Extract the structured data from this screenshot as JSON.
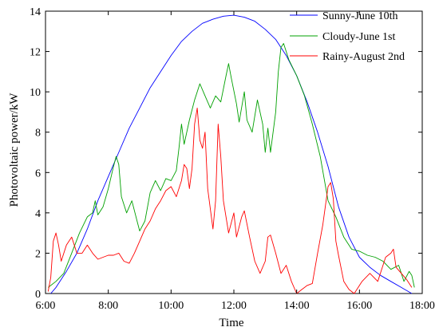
{
  "chart_data": {
    "type": "line",
    "xlabel": "Time",
    "ylabel": "Photovoltaic power/kW",
    "xlim": [
      "6:00",
      "18:00"
    ],
    "ylim": [
      0,
      14
    ],
    "x_ticks": [
      "6:00",
      "8:00",
      "10:00",
      "12:00",
      "14:00",
      "16:00",
      "18:00"
    ],
    "y_ticks": [
      "0",
      "2",
      "4",
      "6",
      "8",
      "10",
      "12",
      "14"
    ],
    "grid": false,
    "legend_position": "top-right",
    "series": [
      {
        "name": "Sunny-June 10th",
        "color": "#0000ff",
        "points": [
          [
            "6:10",
            0.0
          ],
          [
            "6:20",
            0.3
          ],
          [
            "6:40",
            1.1
          ],
          [
            "7:00",
            2.0
          ],
          [
            "7:20",
            3.2
          ],
          [
            "7:40",
            4.6
          ],
          [
            "8:00",
            5.8
          ],
          [
            "8:20",
            7.0
          ],
          [
            "8:40",
            8.2
          ],
          [
            "9:00",
            9.2
          ],
          [
            "9:20",
            10.2
          ],
          [
            "9:40",
            11.0
          ],
          [
            "10:00",
            11.8
          ],
          [
            "10:20",
            12.5
          ],
          [
            "10:40",
            13.0
          ],
          [
            "11:00",
            13.4
          ],
          [
            "11:20",
            13.6
          ],
          [
            "11:40",
            13.75
          ],
          [
            "12:00",
            13.8
          ],
          [
            "12:20",
            13.7
          ],
          [
            "12:40",
            13.5
          ],
          [
            "13:00",
            13.1
          ],
          [
            "13:20",
            12.6
          ],
          [
            "13:40",
            11.8
          ],
          [
            "14:00",
            10.8
          ],
          [
            "14:20",
            9.5
          ],
          [
            "14:40",
            8.0
          ],
          [
            "15:00",
            6.3
          ],
          [
            "15:20",
            4.3
          ],
          [
            "15:40",
            2.8
          ],
          [
            "16:00",
            1.8
          ],
          [
            "16:20",
            1.3
          ],
          [
            "16:40",
            0.9
          ],
          [
            "17:00",
            0.6
          ],
          [
            "17:20",
            0.3
          ],
          [
            "17:40",
            0.0
          ]
        ]
      },
      {
        "name": "Cloudy-June 1st",
        "color": "#00a000",
        "points": [
          [
            "6:05",
            0.3
          ],
          [
            "6:20",
            0.6
          ],
          [
            "6:35",
            1.0
          ],
          [
            "6:50",
            2.0
          ],
          [
            "7:05",
            3.0
          ],
          [
            "7:20",
            3.8
          ],
          [
            "7:30",
            4.0
          ],
          [
            "7:35",
            4.6
          ],
          [
            "7:40",
            3.9
          ],
          [
            "7:50",
            4.3
          ],
          [
            "8:00",
            5.2
          ],
          [
            "8:10",
            6.3
          ],
          [
            "8:15",
            6.8
          ],
          [
            "8:20",
            6.4
          ],
          [
            "8:25",
            4.8
          ],
          [
            "8:35",
            4.0
          ],
          [
            "8:45",
            4.6
          ],
          [
            "8:55",
            3.6
          ],
          [
            "9:00",
            3.1
          ],
          [
            "9:10",
            3.6
          ],
          [
            "9:20",
            5.0
          ],
          [
            "9:30",
            5.6
          ],
          [
            "9:40",
            5.1
          ],
          [
            "9:50",
            5.7
          ],
          [
            "10:00",
            5.6
          ],
          [
            "10:10",
            6.1
          ],
          [
            "10:15",
            7.2
          ],
          [
            "10:20",
            8.4
          ],
          [
            "10:25",
            7.4
          ],
          [
            "10:35",
            8.6
          ],
          [
            "10:45",
            9.6
          ],
          [
            "10:55",
            10.4
          ],
          [
            "11:05",
            9.8
          ],
          [
            "11:15",
            9.2
          ],
          [
            "11:25",
            9.8
          ],
          [
            "11:35",
            9.5
          ],
          [
            "11:45",
            10.8
          ],
          [
            "11:50",
            11.4
          ],
          [
            "11:55",
            10.7
          ],
          [
            "12:05",
            9.4
          ],
          [
            "12:10",
            8.5
          ],
          [
            "12:20",
            10.0
          ],
          [
            "12:25",
            8.6
          ],
          [
            "12:35",
            8.0
          ],
          [
            "12:45",
            9.6
          ],
          [
            "12:55",
            8.4
          ],
          [
            "13:00",
            7.0
          ],
          [
            "13:05",
            8.2
          ],
          [
            "13:10",
            7.0
          ],
          [
            "13:20",
            9.0
          ],
          [
            "13:25",
            11.0
          ],
          [
            "13:30",
            12.2
          ],
          [
            "13:35",
            12.4
          ],
          [
            "13:45",
            11.6
          ],
          [
            "14:00",
            10.8
          ],
          [
            "14:15",
            9.8
          ],
          [
            "14:30",
            8.4
          ],
          [
            "14:45",
            6.8
          ],
          [
            "15:00",
            4.6
          ],
          [
            "15:15",
            3.8
          ],
          [
            "15:30",
            2.8
          ],
          [
            "15:45",
            2.2
          ],
          [
            "16:00",
            2.1
          ],
          [
            "16:15",
            1.9
          ],
          [
            "16:30",
            1.8
          ],
          [
            "16:45",
            1.6
          ],
          [
            "17:00",
            1.2
          ],
          [
            "17:15",
            1.4
          ],
          [
            "17:25",
            0.6
          ],
          [
            "17:35",
            1.1
          ],
          [
            "17:40",
            0.9
          ],
          [
            "17:45",
            0.3
          ]
        ]
      },
      {
        "name": "Rainy-August 2nd",
        "color": "#ff0000",
        "points": [
          [
            "6:05",
            0.1
          ],
          [
            "6:10",
            0.8
          ],
          [
            "6:15",
            2.6
          ],
          [
            "6:20",
            3.0
          ],
          [
            "6:25",
            2.4
          ],
          [
            "6:30",
            1.6
          ],
          [
            "6:40",
            2.4
          ],
          [
            "6:50",
            2.8
          ],
          [
            "7:00",
            2.0
          ],
          [
            "7:10",
            2.0
          ],
          [
            "7:20",
            2.4
          ],
          [
            "7:30",
            2.0
          ],
          [
            "7:40",
            1.7
          ],
          [
            "7:50",
            1.8
          ],
          [
            "8:00",
            1.9
          ],
          [
            "8:10",
            1.9
          ],
          [
            "8:20",
            2.0
          ],
          [
            "8:30",
            1.6
          ],
          [
            "8:40",
            1.5
          ],
          [
            "8:50",
            2.0
          ],
          [
            "9:00",
            2.6
          ],
          [
            "9:10",
            3.2
          ],
          [
            "9:20",
            3.6
          ],
          [
            "9:30",
            4.2
          ],
          [
            "9:40",
            4.6
          ],
          [
            "9:50",
            5.1
          ],
          [
            "10:00",
            5.3
          ],
          [
            "10:10",
            4.8
          ],
          [
            "10:20",
            5.6
          ],
          [
            "10:25",
            6.4
          ],
          [
            "10:30",
            6.2
          ],
          [
            "10:35",
            5.2
          ],
          [
            "10:40",
            6.2
          ],
          [
            "10:45",
            8.4
          ],
          [
            "10:50",
            9.2
          ],
          [
            "10:55",
            7.6
          ],
          [
            "11:00",
            7.2
          ],
          [
            "11:05",
            8.0
          ],
          [
            "11:10",
            5.2
          ],
          [
            "11:20",
            3.2
          ],
          [
            "11:25",
            4.6
          ],
          [
            "11:30",
            8.4
          ],
          [
            "11:35",
            6.8
          ],
          [
            "11:40",
            4.6
          ],
          [
            "11:50",
            3.0
          ],
          [
            "12:00",
            4.0
          ],
          [
            "12:05",
            2.8
          ],
          [
            "12:15",
            3.8
          ],
          [
            "12:20",
            4.1
          ],
          [
            "12:30",
            2.8
          ],
          [
            "12:40",
            1.6
          ],
          [
            "12:50",
            1.0
          ],
          [
            "13:00",
            1.6
          ],
          [
            "13:05",
            2.8
          ],
          [
            "13:10",
            2.9
          ],
          [
            "13:20",
            2.0
          ],
          [
            "13:30",
            1.0
          ],
          [
            "13:40",
            1.4
          ],
          [
            "13:50",
            0.6
          ],
          [
            "14:00",
            0.0
          ],
          [
            "14:10",
            0.2
          ],
          [
            "14:20",
            0.4
          ],
          [
            "14:30",
            0.5
          ],
          [
            "14:40",
            2.0
          ],
          [
            "14:50",
            3.4
          ],
          [
            "15:00",
            5.3
          ],
          [
            "15:05",
            5.5
          ],
          [
            "15:10",
            4.7
          ],
          [
            "15:15",
            2.6
          ],
          [
            "15:20",
            1.9
          ],
          [
            "15:30",
            0.6
          ],
          [
            "15:40",
            0.2
          ],
          [
            "15:50",
            0.0
          ],
          [
            "16:05",
            0.6
          ],
          [
            "16:20",
            1.0
          ],
          [
            "16:35",
            0.6
          ],
          [
            "16:50",
            1.8
          ],
          [
            "17:00",
            2.0
          ],
          [
            "17:05",
            2.2
          ],
          [
            "17:10",
            1.3
          ],
          [
            "17:20",
            1.0
          ],
          [
            "17:30",
            0.7
          ],
          [
            "17:40",
            0.3
          ]
        ]
      }
    ]
  }
}
